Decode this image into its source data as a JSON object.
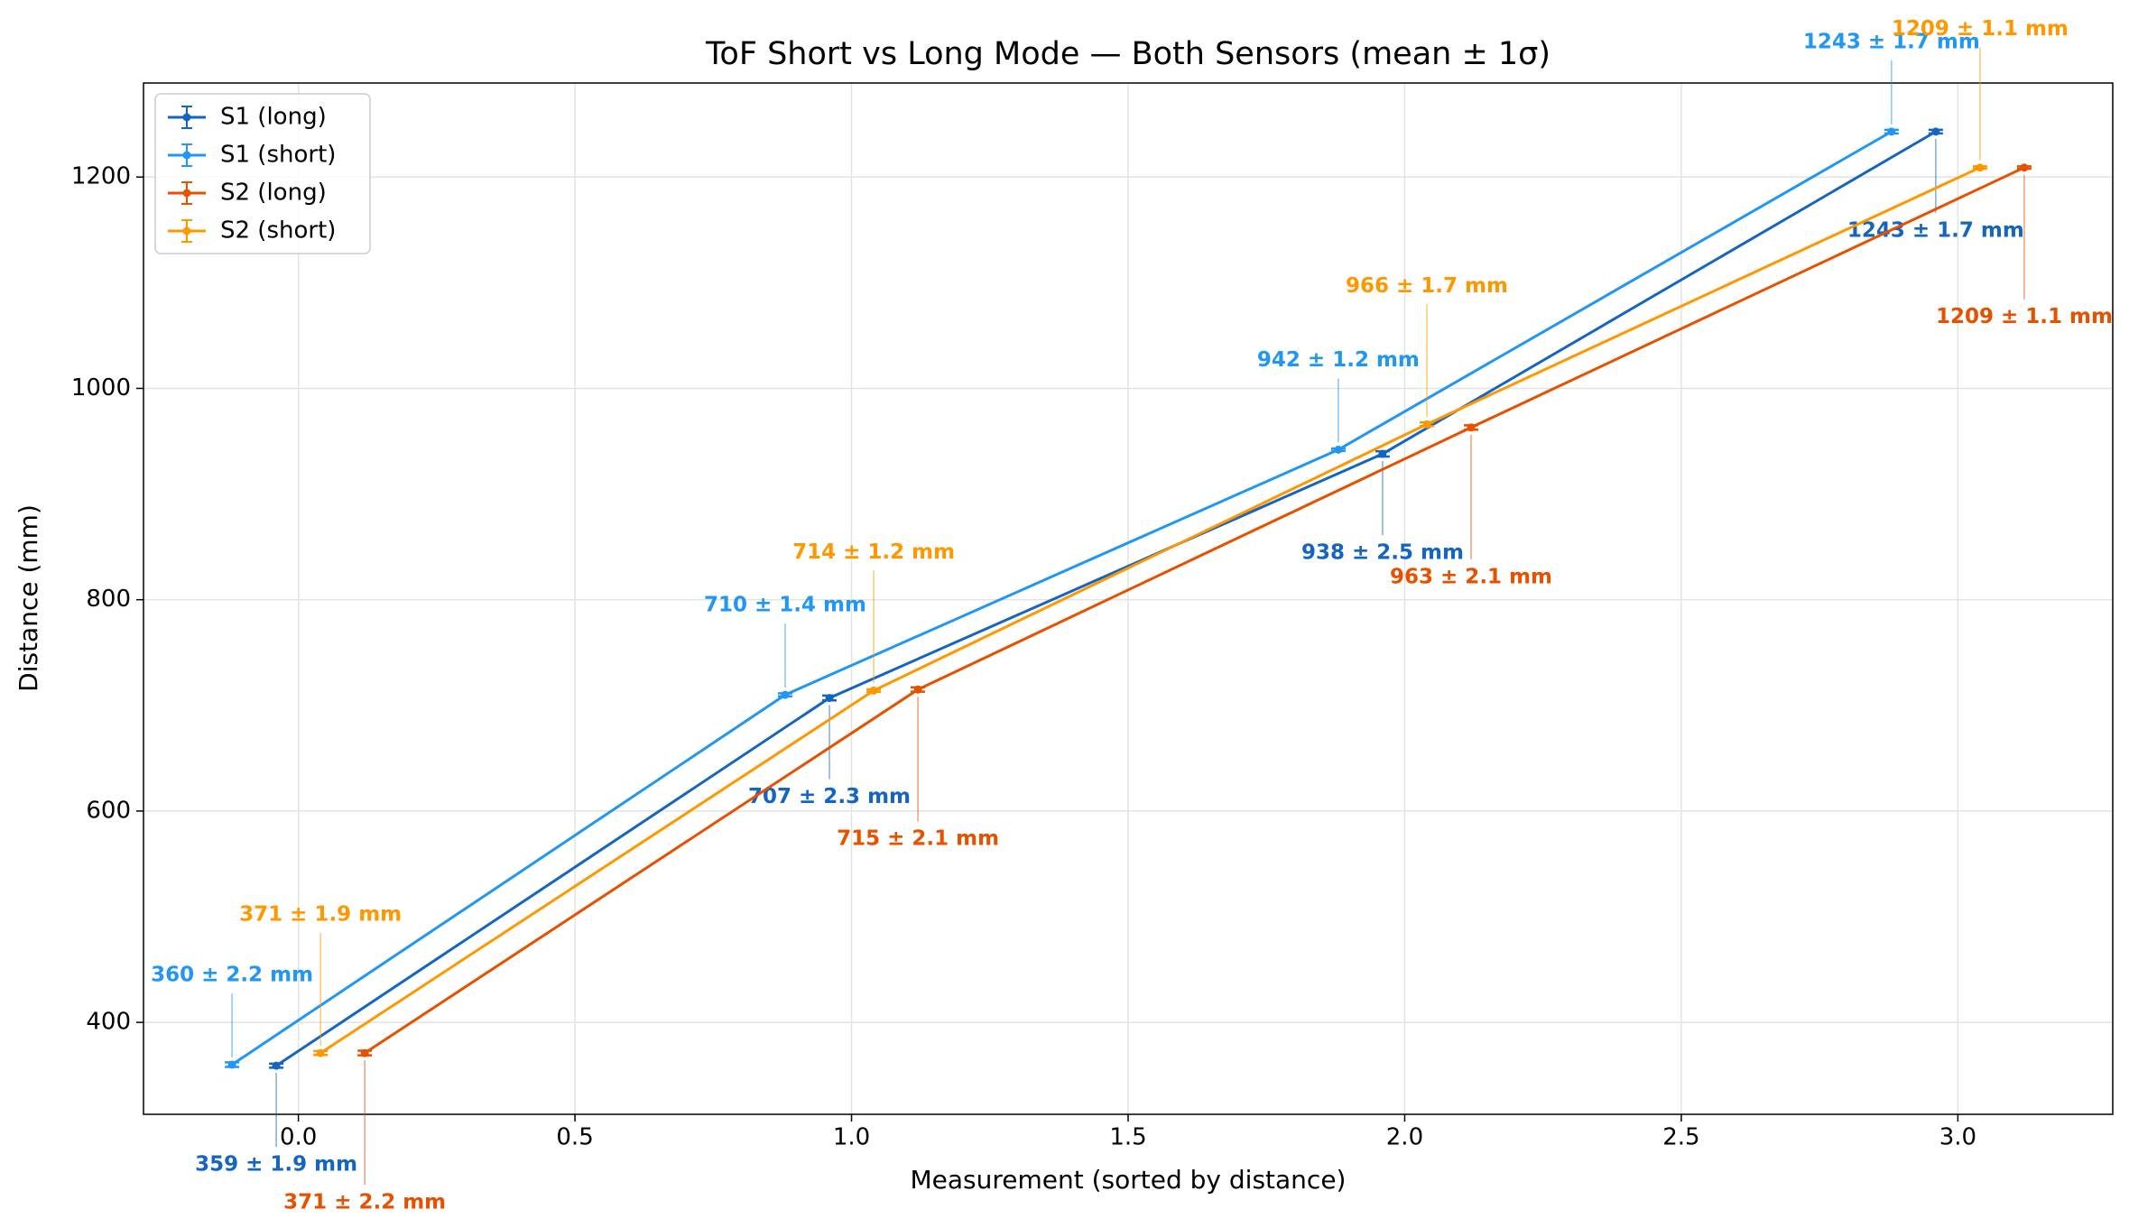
{
  "chart_data": {
    "type": "errorbar-line",
    "title": "ToF Short vs Long Mode — Both Sensors (mean ± 1σ)",
    "x_label": "Measurement (sorted by distance)",
    "y_label": "Distance (mm)",
    "xlim": [
      -0.28,
      3.28
    ],
    "ylim": [
      313,
      1289
    ],
    "xticks": [
      {
        "value": 0,
        "label": "0.0"
      },
      0.5,
      {
        "value": 1,
        "label": "1.0"
      },
      1.5,
      {
        "value": 2,
        "label": "2.0"
      },
      2.5,
      {
        "value": 3,
        "label": "3.0"
      }
    ],
    "yticks": [
      400,
      600,
      800,
      1000,
      1200
    ],
    "grid": true,
    "legend": "upper left",
    "series": [
      {
        "name": "S1 (long)",
        "color": "#1565c0",
        "x": [
          -0.04,
          0.96,
          1.96,
          2.96
        ],
        "values": [
          359,
          707,
          938,
          1243
        ],
        "errors": [
          1.9,
          2.3,
          2.5,
          1.7
        ],
        "value_labels": [
          "359 ± 1.9 mm",
          "707 ± 2.3 mm",
          "938 ± 2.5 mm",
          "1243 ± 1.7 mm"
        ]
      },
      {
        "name": "S1 (short)",
        "color": "#2196f3",
        "x": [
          -0.12,
          0.88,
          1.88,
          2.88
        ],
        "values": [
          360,
          710,
          942,
          1243
        ],
        "errors": [
          2.2,
          1.4,
          1.2,
          1.7
        ],
        "value_labels": [
          "360 ± 2.2 mm",
          "710 ± 1.4 mm",
          "942 ± 1.2 mm",
          "1243 ± 1.7 mm"
        ]
      },
      {
        "name": "S2 (long)",
        "color": "#e65100",
        "x": [
          0.12,
          1.12,
          2.12,
          3.12
        ],
        "values": [
          371,
          715,
          963,
          1209
        ],
        "errors": [
          2.2,
          2.1,
          2.1,
          1.1
        ],
        "value_labels": [
          "371 ± 2.2 mm",
          "715 ± 2.1 mm",
          "963 ± 2.1 mm",
          "1209 ± 1.1 mm"
        ]
      },
      {
        "name": "S2 (short)",
        "color": "#ff9800",
        "x": [
          0.04,
          1.04,
          2.04,
          3.04
        ],
        "values": [
          371,
          714,
          966,
          1209
        ],
        "errors": [
          1.9,
          1.2,
          1.7,
          1.1
        ],
        "value_labels": [
          "371 ± 1.9 mm",
          "714 ± 1.2 mm",
          "966 ± 1.7 mm",
          "1209 ± 1.1 mm"
        ]
      }
    ]
  }
}
